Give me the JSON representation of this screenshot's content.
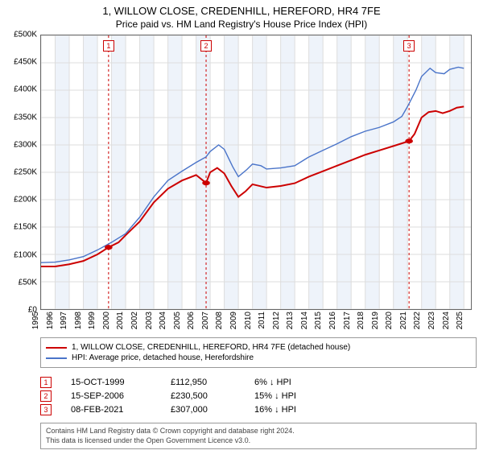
{
  "title": "1, WILLOW CLOSE, CREDENHILL, HEREFORD, HR4 7FE",
  "subtitle": "Price paid vs. HM Land Registry's House Price Index (HPI)",
  "chart": {
    "type": "line",
    "x_years": [
      1995,
      1996,
      1997,
      1998,
      1999,
      2000,
      2001,
      2002,
      2003,
      2004,
      2005,
      2006,
      2007,
      2008,
      2009,
      2010,
      2011,
      2012,
      2013,
      2014,
      2015,
      2016,
      2017,
      2018,
      2019,
      2020,
      2021,
      2022,
      2023,
      2024,
      2025
    ],
    "xlim": [
      1995,
      2025.5
    ],
    "ylim": [
      0,
      500000
    ],
    "ytick_step": 50000,
    "y_prefix": "£",
    "y_suffix": "K",
    "background_color": "#ffffff",
    "alt_band_color": "#eef3fa",
    "grid_color": "#dddddd",
    "axis_color": "#666666",
    "title_fontsize": 13,
    "label_fontsize": 10,
    "series": [
      {
        "name": "price_paid",
        "label": "1, WILLOW CLOSE, CREDENHILL, HEREFORD, HR4 7FE (detached house)",
        "color": "#cc0000",
        "width": 2,
        "points": [
          [
            1995.0,
            78000
          ],
          [
            1996.0,
            78000
          ],
          [
            1997.0,
            82000
          ],
          [
            1998.0,
            88000
          ],
          [
            1999.0,
            100000
          ],
          [
            1999.79,
            112950
          ],
          [
            2000.5,
            122000
          ],
          [
            2001.0,
            135000
          ],
          [
            2002.0,
            160000
          ],
          [
            2003.0,
            195000
          ],
          [
            2004.0,
            220000
          ],
          [
            2005.0,
            235000
          ],
          [
            2006.0,
            245000
          ],
          [
            2006.71,
            230500
          ],
          [
            2007.0,
            250000
          ],
          [
            2007.5,
            258000
          ],
          [
            2008.0,
            248000
          ],
          [
            2008.5,
            225000
          ],
          [
            2009.0,
            205000
          ],
          [
            2009.5,
            215000
          ],
          [
            2010.0,
            228000
          ],
          [
            2011.0,
            222000
          ],
          [
            2012.0,
            225000
          ],
          [
            2013.0,
            230000
          ],
          [
            2014.0,
            242000
          ],
          [
            2015.0,
            252000
          ],
          [
            2016.0,
            262000
          ],
          [
            2017.0,
            272000
          ],
          [
            2018.0,
            282000
          ],
          [
            2019.0,
            290000
          ],
          [
            2020.0,
            298000
          ],
          [
            2021.11,
            307000
          ],
          [
            2021.5,
            320000
          ],
          [
            2022.0,
            350000
          ],
          [
            2022.5,
            360000
          ],
          [
            2023.0,
            362000
          ],
          [
            2023.5,
            358000
          ],
          [
            2024.0,
            362000
          ],
          [
            2024.5,
            368000
          ],
          [
            2025.0,
            370000
          ]
        ]
      },
      {
        "name": "hpi",
        "label": "HPI: Average price, detached house, Herefordshire",
        "color": "#4a74c9",
        "width": 1.4,
        "points": [
          [
            1995.0,
            85000
          ],
          [
            1996.0,
            86000
          ],
          [
            1997.0,
            90000
          ],
          [
            1998.0,
            96000
          ],
          [
            1999.0,
            108000
          ],
          [
            2000.0,
            122000
          ],
          [
            2001.0,
            138000
          ],
          [
            2002.0,
            168000
          ],
          [
            2003.0,
            205000
          ],
          [
            2004.0,
            235000
          ],
          [
            2005.0,
            252000
          ],
          [
            2006.0,
            268000
          ],
          [
            2006.7,
            278000
          ],
          [
            2007.0,
            288000
          ],
          [
            2007.6,
            300000
          ],
          [
            2008.0,
            292000
          ],
          [
            2008.6,
            260000
          ],
          [
            2009.0,
            242000
          ],
          [
            2009.6,
            255000
          ],
          [
            2010.0,
            265000
          ],
          [
            2010.6,
            262000
          ],
          [
            2011.0,
            256000
          ],
          [
            2012.0,
            258000
          ],
          [
            2013.0,
            262000
          ],
          [
            2014.0,
            278000
          ],
          [
            2015.0,
            290000
          ],
          [
            2016.0,
            302000
          ],
          [
            2017.0,
            315000
          ],
          [
            2018.0,
            325000
          ],
          [
            2019.0,
            332000
          ],
          [
            2020.0,
            342000
          ],
          [
            2020.6,
            352000
          ],
          [
            2021.0,
            370000
          ],
          [
            2021.6,
            400000
          ],
          [
            2022.0,
            425000
          ],
          [
            2022.6,
            440000
          ],
          [
            2023.0,
            432000
          ],
          [
            2023.6,
            430000
          ],
          [
            2024.0,
            438000
          ],
          [
            2024.6,
            442000
          ],
          [
            2025.0,
            440000
          ]
        ]
      }
    ],
    "sale_markers": [
      {
        "n": "1",
        "x": 1999.79,
        "y": 112950
      },
      {
        "n": "2",
        "x": 2006.71,
        "y": 230500
      },
      {
        "n": "3",
        "x": 2021.11,
        "y": 307000
      }
    ],
    "marker_dot_color": "#cc0000",
    "marker_line_color": "#cc0000"
  },
  "legend": {
    "items": [
      {
        "color": "#cc0000",
        "label": "1, WILLOW CLOSE, CREDENHILL, HEREFORD, HR4 7FE (detached house)"
      },
      {
        "color": "#4a74c9",
        "label": "HPI: Average price, detached house, Herefordshire"
      }
    ]
  },
  "sales": [
    {
      "n": "1",
      "date": "15-OCT-1999",
      "price": "£112,950",
      "diff": "6% ↓ HPI"
    },
    {
      "n": "2",
      "date": "15-SEP-2006",
      "price": "£230,500",
      "diff": "15% ↓ HPI"
    },
    {
      "n": "3",
      "date": "08-FEB-2021",
      "price": "£307,000",
      "diff": "16% ↓ HPI"
    }
  ],
  "footer": {
    "line1": "Contains HM Land Registry data © Crown copyright and database right 2024.",
    "line2": "This data is licensed under the Open Government Licence v3.0."
  }
}
